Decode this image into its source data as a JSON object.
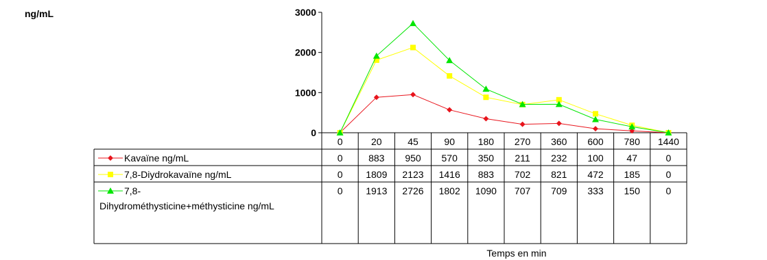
{
  "chart_data": {
    "type": "line",
    "ylabel": "ng/mL",
    "xlabel": "Temps en min",
    "ylim": [
      0,
      3000
    ],
    "yticks": [
      "0",
      "1000",
      "2000",
      "3000"
    ],
    "categories": [
      "0",
      "20",
      "45",
      "90",
      "180",
      "270",
      "360",
      "600",
      "780",
      "1440"
    ],
    "series": [
      {
        "name": "Kavaïne ng/mL",
        "values": [
          0,
          883,
          950,
          570,
          350,
          211,
          232,
          100,
          47,
          0
        ],
        "color": "#e8141c",
        "marker": "diamond"
      },
      {
        "name": "7,8-Diydrokavaïne ng/mL",
        "values": [
          0,
          1809,
          2123,
          1416,
          883,
          702,
          821,
          472,
          185,
          0
        ],
        "color": "#ffff00",
        "marker": "square"
      },
      {
        "name": "7,8-Dihydrométhysticine+méthysticine ng/mL",
        "name_lines": [
          "7,8-",
          "Dihydrométhysticine+méthysticine ng/mL"
        ],
        "values": [
          0,
          1913,
          2726,
          1802,
          1090,
          707,
          709,
          333,
          150,
          0
        ],
        "color": "#00e600",
        "marker": "triangle"
      }
    ],
    "grid": false,
    "legend": "data-table"
  }
}
